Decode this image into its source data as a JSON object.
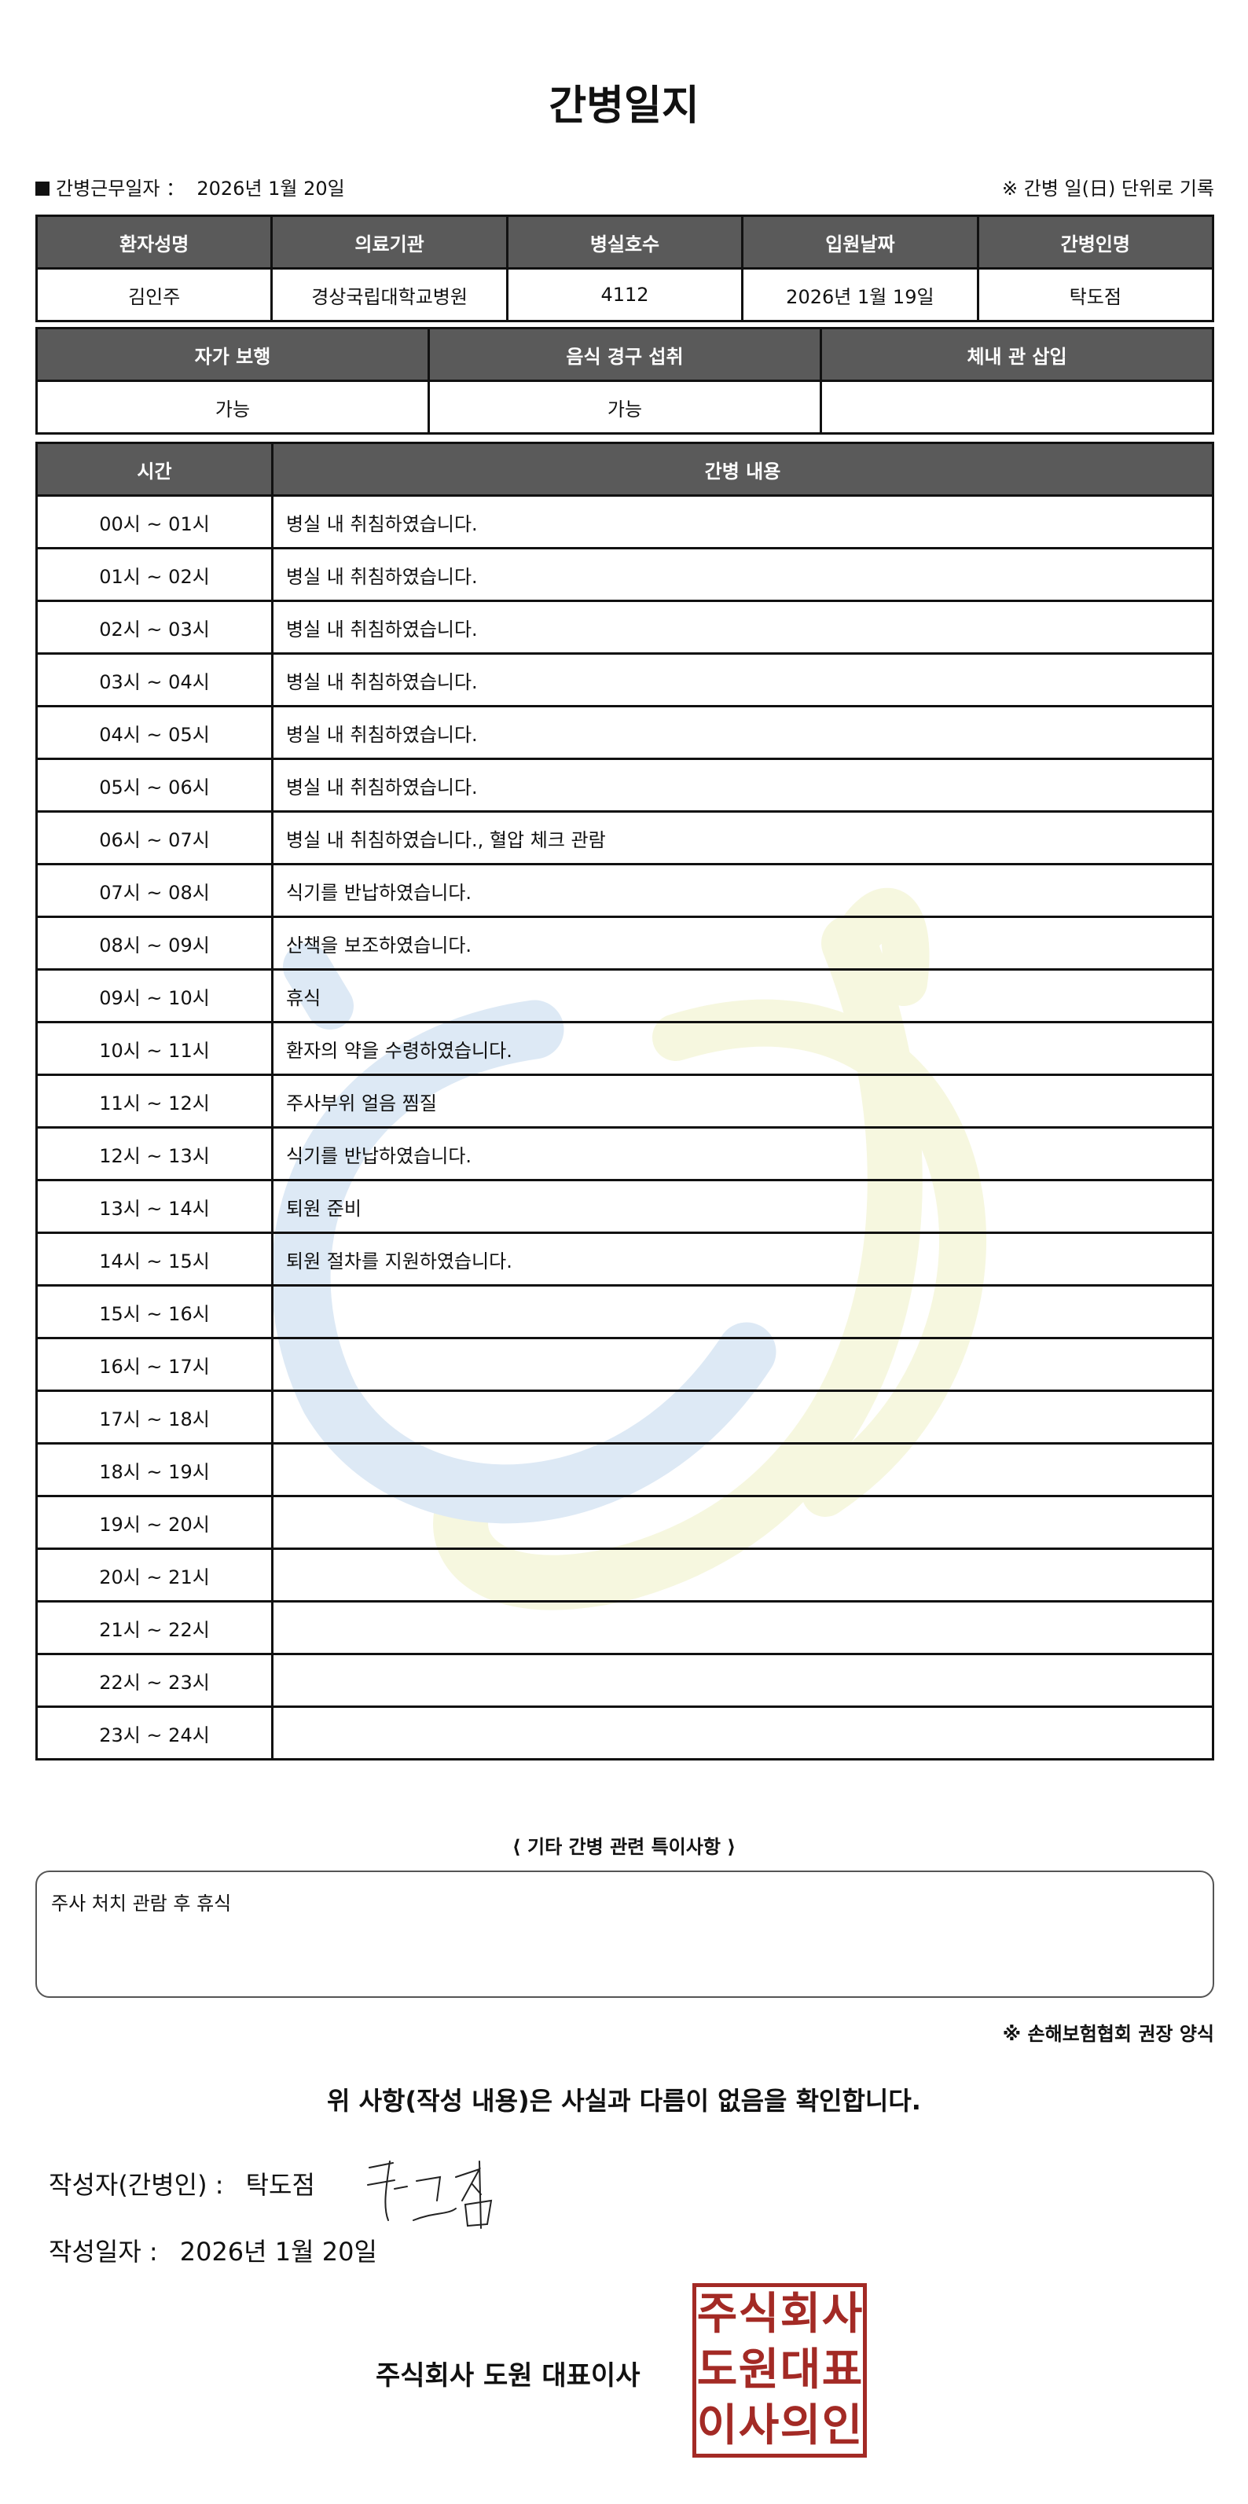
{
  "title": "간병일지",
  "info": {
    "work_date_label": "간병근무일자 ：",
    "work_date": "2026년 1월 20일",
    "note": "※ 간병 일(日) 단위로 기록"
  },
  "patient_table": {
    "headers": [
      "환자성명",
      "의료기관",
      "병실호수",
      "입원날짜",
      "간병인명"
    ],
    "values": [
      "김인주",
      "경상국립대학교병원",
      "4112",
      "2026년 1월 19일",
      "탁도점"
    ]
  },
  "status_table": {
    "headers": [
      "자가 보행",
      "음식 경구 섭취",
      "체내 관 삽입"
    ],
    "values": [
      "가능",
      "가능",
      ""
    ]
  },
  "log_table": {
    "headers": [
      "시간",
      "간병 내용"
    ],
    "rows": [
      {
        "time": "00시 ~ 01시",
        "content": "병실 내 취침하였습니다."
      },
      {
        "time": "01시 ~ 02시",
        "content": "병실 내 취침하였습니다."
      },
      {
        "time": "02시 ~ 03시",
        "content": "병실 내 취침하였습니다."
      },
      {
        "time": "03시 ~ 04시",
        "content": "병실 내 취침하였습니다."
      },
      {
        "time": "04시 ~ 05시",
        "content": "병실 내 취침하였습니다."
      },
      {
        "time": "05시 ~ 06시",
        "content": "병실 내 취침하였습니다."
      },
      {
        "time": "06시 ~ 07시",
        "content": "병실 내 취침하였습니다., 혈압 체크 관람"
      },
      {
        "time": "07시 ~ 08시",
        "content": "식기를 반납하였습니다."
      },
      {
        "time": "08시 ~ 09시",
        "content": "산책을 보조하였습니다."
      },
      {
        "time": "09시 ~ 10시",
        "content": "휴식"
      },
      {
        "time": "10시 ~ 11시",
        "content": "환자의 약을 수령하였습니다."
      },
      {
        "time": "11시 ~ 12시",
        "content": "주사부위 얼음 찜질"
      },
      {
        "time": "12시 ~ 13시",
        "content": "식기를 반납하였습니다."
      },
      {
        "time": "13시 ~ 14시",
        "content": "퇴원 준비"
      },
      {
        "time": "14시 ~ 15시",
        "content": "퇴원 절차를 지원하였습니다."
      },
      {
        "time": "15시 ~ 16시",
        "content": ""
      },
      {
        "time": "16시 ~ 17시",
        "content": ""
      },
      {
        "time": "17시 ~ 18시",
        "content": ""
      },
      {
        "time": "18시 ~ 19시",
        "content": ""
      },
      {
        "time": "19시 ~ 20시",
        "content": ""
      },
      {
        "time": "20시 ~ 21시",
        "content": ""
      },
      {
        "time": "21시 ~ 22시",
        "content": ""
      },
      {
        "time": "22시 ~ 23시",
        "content": ""
      },
      {
        "time": "23시 ~ 24시",
        "content": ""
      }
    ]
  },
  "notes": {
    "label": "⟨ 기타 간병 관련 특이사항 ⟩",
    "content": "주사 처치 관람 후  휴식"
  },
  "recommend_note": "※ 손해보험협회 권장 양식",
  "confirmation": "위 사항(작성 내용)은 사실과 다름이 없음을 확인합니다.",
  "writer": {
    "label": "작성자(간병인) :",
    "name": "탁도점",
    "signature": "탁도점"
  },
  "write_date": {
    "label": "작성일자 :",
    "value": "2026년 1월 20일"
  },
  "company": "주식회사 도원   대표이사",
  "seal": {
    "text": [
      "주",
      "식",
      "회",
      "사",
      "도",
      "원",
      "대",
      "표",
      "이",
      "사",
      "의",
      "인"
    ],
    "color": "#a32a25"
  },
  "colors": {
    "header_bg": "#5a5a5a",
    "watermark_blue": "#dde9f5",
    "watermark_yellow": "#f6f7df"
  }
}
